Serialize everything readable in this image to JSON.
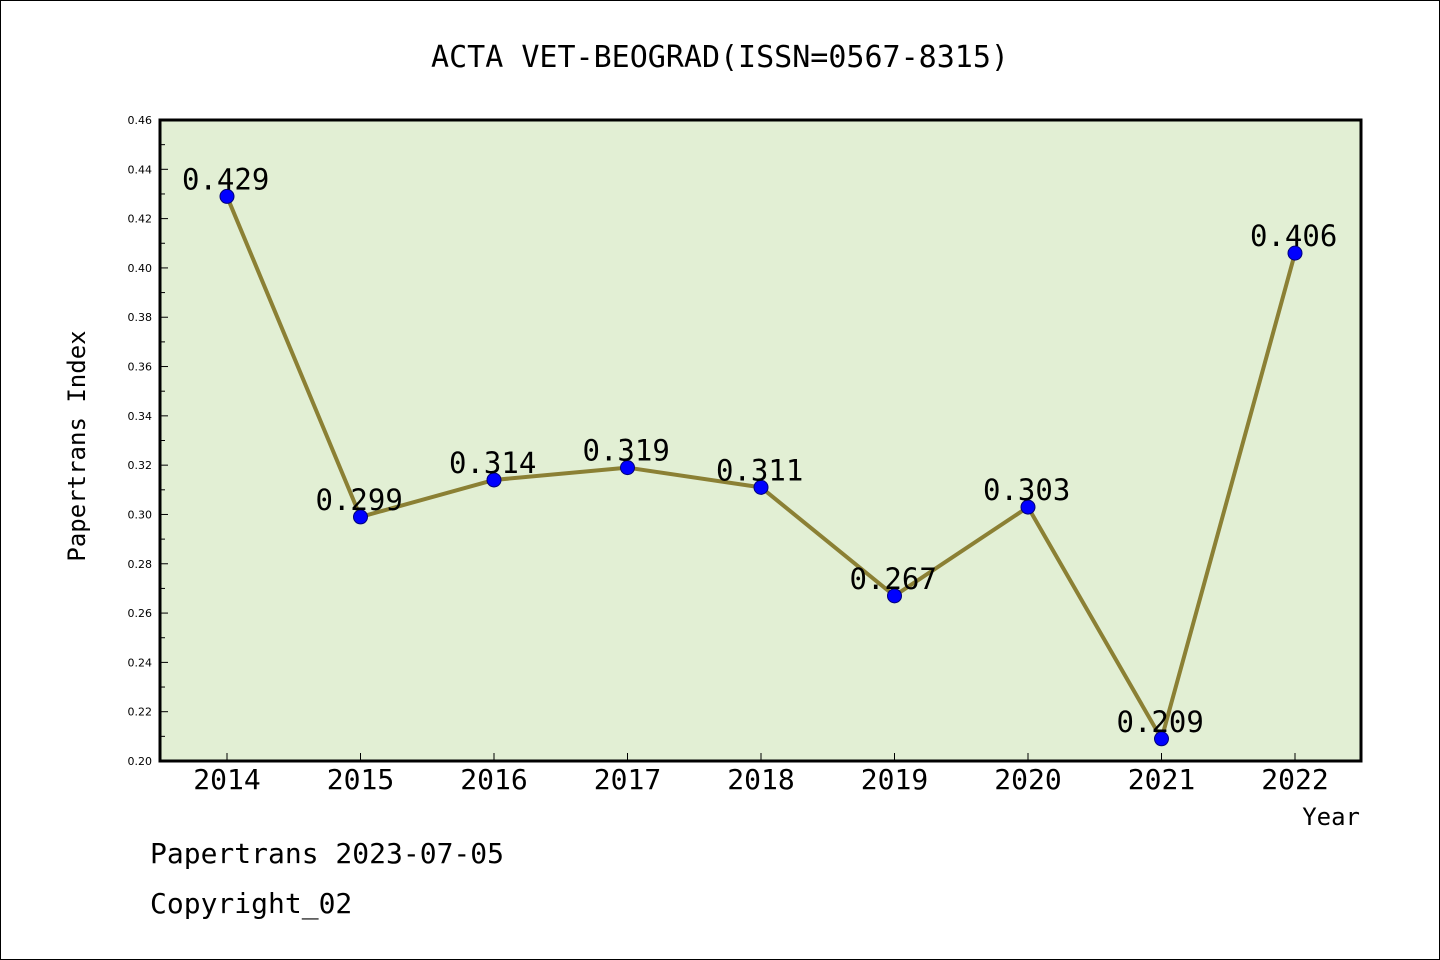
{
  "chart_data": {
    "type": "line",
    "title": "ACTA VET-BEOGRAD(ISSN=0567-8315)",
    "xlabel": "Year",
    "ylabel": "Papertrans Index",
    "categories": [
      "2014",
      "2015",
      "2016",
      "2017",
      "2018",
      "2019",
      "2020",
      "2021",
      "2022"
    ],
    "values": [
      0.429,
      0.299,
      0.314,
      0.319,
      0.311,
      0.267,
      0.303,
      0.209,
      0.406
    ],
    "data_labels": [
      "0.429",
      "0.299",
      "0.314",
      "0.319",
      "0.311",
      "0.267",
      "0.303",
      "0.209",
      "0.406"
    ],
    "ylim": [
      0.2,
      0.46
    ],
    "yticks": [
      "0.20",
      "0.22",
      "0.24",
      "0.26",
      "0.28",
      "0.30",
      "0.32",
      "0.34",
      "0.36",
      "0.38",
      "0.40",
      "0.42",
      "0.44",
      "0.46"
    ],
    "grid": false,
    "colors": {
      "plot_background": "#e2efd4",
      "line": "#8b8034",
      "marker": "#0000ff"
    }
  },
  "footer": {
    "source": "Papertrans 2023-07-05",
    "copyright": "Copyright_02"
  }
}
